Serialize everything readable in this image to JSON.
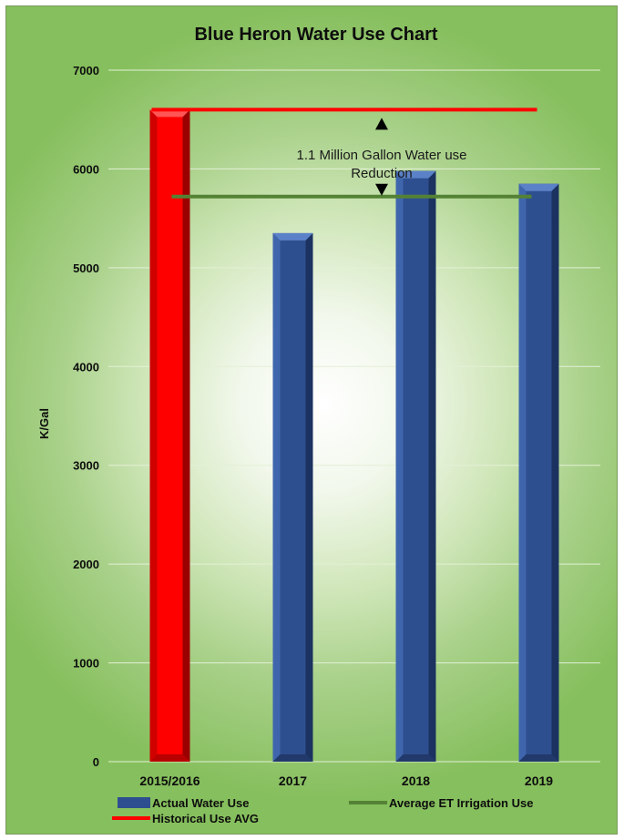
{
  "chart_data": {
    "type": "bar",
    "title": "Blue Heron Water Use Chart",
    "ylabel": "K/Gal",
    "xlabel": "",
    "ylim": [
      0,
      7000
    ],
    "yticks": [
      0,
      1000,
      2000,
      3000,
      4000,
      5000,
      6000,
      7000
    ],
    "categories": [
      "2015/2016",
      "2017",
      "2018",
      "2019"
    ],
    "series": [
      {
        "name": "Actual Water Use",
        "values": [
          6600,
          5350,
          5980,
          5850
        ],
        "color": "#2e4f8f",
        "highlight": {
          "index": 0,
          "color": "#ff0000"
        }
      }
    ],
    "lines": [
      {
        "name": "Average ET Irrigation Use",
        "value": 5720,
        "color": "#548235"
      },
      {
        "name": "Historical Use AVG",
        "value": 6600,
        "color": "#ff0000"
      }
    ],
    "annotation": "1.1 Million Gallon Water use Reduction",
    "grid": true,
    "legend_position": "bottom",
    "background": "green-radial-gradient"
  }
}
